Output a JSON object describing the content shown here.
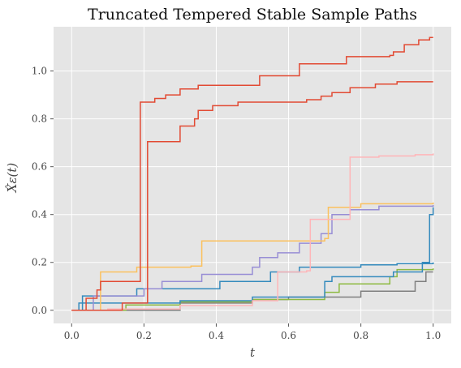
{
  "chart_data": {
    "type": "line",
    "step": true,
    "title": "Truncated Tempered Stable Sample Paths",
    "xlabel": "t",
    "ylabel": "X̂ε(t)",
    "xlim": [
      -0.05,
      1.05
    ],
    "ylim": [
      -0.055,
      1.185
    ],
    "xticks": [
      0.0,
      0.2,
      0.4,
      0.6,
      0.8,
      1.0
    ],
    "xtick_labels": [
      "0.0",
      "0.2",
      "0.4",
      "0.6",
      "0.8",
      "1.0"
    ],
    "yticks": [
      0.0,
      0.2,
      0.4,
      0.6,
      0.8,
      1.0
    ],
    "ytick_labels": [
      "0.0",
      "0.2",
      "0.4",
      "0.6",
      "0.8",
      "1.0"
    ],
    "grid": true,
    "background": "#e5e5e5",
    "series": [
      {
        "color": "#7f7f7f",
        "points": [
          [
            0,
            0
          ],
          [
            0.3,
            0.01
          ],
          [
            0.3,
            0.03
          ],
          [
            0.5,
            0.045
          ],
          [
            0.6,
            0.055
          ],
          [
            0.8,
            0.068
          ],
          [
            0.8,
            0.08
          ],
          [
            0.95,
            0.09
          ],
          [
            0.95,
            0.12
          ],
          [
            0.98,
            0.12
          ],
          [
            0.98,
            0.16
          ],
          [
            1.0,
            0.16
          ]
        ]
      },
      {
        "color": "#8eba42",
        "points": [
          [
            0,
            0
          ],
          [
            0.15,
            0.012
          ],
          [
            0.15,
            0.022
          ],
          [
            0.3,
            0.035
          ],
          [
            0.5,
            0.045
          ],
          [
            0.7,
            0.06
          ],
          [
            0.7,
            0.075
          ],
          [
            0.74,
            0.08
          ],
          [
            0.74,
            0.11
          ],
          [
            0.88,
            0.115
          ],
          [
            0.88,
            0.14
          ],
          [
            0.9,
            0.15
          ],
          [
            0.9,
            0.17
          ],
          [
            1.0,
            0.175
          ]
        ]
      },
      {
        "color": "#348abd",
        "points": [
          [
            0,
            0
          ],
          [
            0.02,
            0.01
          ],
          [
            0.02,
            0.03
          ],
          [
            0.3,
            0.04
          ],
          [
            0.5,
            0.055
          ],
          [
            0.7,
            0.07
          ],
          [
            0.7,
            0.12
          ],
          [
            0.72,
            0.13
          ],
          [
            0.72,
            0.14
          ],
          [
            0.89,
            0.145
          ],
          [
            0.89,
            0.16
          ],
          [
            0.97,
            0.17
          ],
          [
            0.97,
            0.2
          ],
          [
            0.99,
            0.21
          ],
          [
            0.99,
            0.4
          ],
          [
            1.0,
            0.4
          ],
          [
            1.0,
            0.43
          ]
        ]
      },
      {
        "color": "#348abd",
        "points": [
          [
            0,
            0
          ],
          [
            0.03,
            0.02
          ],
          [
            0.03,
            0.06
          ],
          [
            0.18,
            0.07
          ],
          [
            0.18,
            0.09
          ],
          [
            0.41,
            0.1
          ],
          [
            0.41,
            0.12
          ],
          [
            0.55,
            0.13
          ],
          [
            0.55,
            0.16
          ],
          [
            0.63,
            0.17
          ],
          [
            0.63,
            0.18
          ],
          [
            0.8,
            0.19
          ],
          [
            0.9,
            0.19
          ],
          [
            0.9,
            0.195
          ],
          [
            1.0,
            0.2
          ]
        ]
      },
      {
        "color": "#988ed5",
        "points": [
          [
            0,
            0
          ],
          [
            0.06,
            0.03
          ],
          [
            0.06,
            0.06
          ],
          [
            0.2,
            0.075
          ],
          [
            0.2,
            0.09
          ],
          [
            0.25,
            0.1
          ],
          [
            0.25,
            0.12
          ],
          [
            0.36,
            0.13
          ],
          [
            0.36,
            0.15
          ],
          [
            0.5,
            0.16
          ],
          [
            0.5,
            0.18
          ],
          [
            0.52,
            0.19
          ],
          [
            0.52,
            0.22
          ],
          [
            0.57,
            0.23
          ],
          [
            0.57,
            0.24
          ],
          [
            0.63,
            0.25
          ],
          [
            0.63,
            0.28
          ],
          [
            0.69,
            0.29
          ],
          [
            0.69,
            0.32
          ],
          [
            0.72,
            0.33
          ],
          [
            0.72,
            0.4
          ],
          [
            0.77,
            0.41
          ],
          [
            0.77,
            0.42
          ],
          [
            0.85,
            0.43
          ],
          [
            0.85,
            0.435
          ],
          [
            1.0,
            0.44
          ]
        ]
      },
      {
        "color": "#fbc15e",
        "points": [
          [
            0,
            0
          ],
          [
            0.08,
            0.07
          ],
          [
            0.08,
            0.16
          ],
          [
            0.18,
            0.17
          ],
          [
            0.18,
            0.18
          ],
          [
            0.33,
            0.185
          ],
          [
            0.36,
            0.185
          ],
          [
            0.36,
            0.29
          ],
          [
            0.5,
            0.29
          ],
          [
            0.7,
            0.3
          ],
          [
            0.71,
            0.3
          ],
          [
            0.71,
            0.43
          ],
          [
            0.8,
            0.44
          ],
          [
            0.8,
            0.445
          ],
          [
            1.0,
            0.45
          ]
        ]
      },
      {
        "color": "#ffb5b8",
        "points": [
          [
            0,
            0
          ],
          [
            0.1,
            0.005
          ],
          [
            0.3,
            0.02
          ],
          [
            0.5,
            0.04
          ],
          [
            0.57,
            0.05
          ],
          [
            0.57,
            0.16
          ],
          [
            0.65,
            0.165
          ],
          [
            0.66,
            0.17
          ],
          [
            0.66,
            0.38
          ],
          [
            0.77,
            0.4
          ],
          [
            0.77,
            0.64
          ],
          [
            0.85,
            0.645
          ],
          [
            0.95,
            0.65
          ],
          [
            1.0,
            0.655
          ]
        ]
      },
      {
        "color": "#e24a33",
        "points": [
          [
            0,
            0
          ],
          [
            0.04,
            0.01
          ],
          [
            0.04,
            0.05
          ],
          [
            0.07,
            0.05
          ],
          [
            0.07,
            0.085
          ],
          [
            0.08,
            0.085
          ],
          [
            0.08,
            0.12
          ],
          [
            0.19,
            0.13
          ],
          [
            0.19,
            0.87
          ],
          [
            0.23,
            0.875
          ],
          [
            0.23,
            0.885
          ],
          [
            0.26,
            0.89
          ],
          [
            0.26,
            0.9
          ],
          [
            0.3,
            0.905
          ],
          [
            0.3,
            0.925
          ],
          [
            0.35,
            0.93
          ],
          [
            0.35,
            0.94
          ],
          [
            0.52,
            0.95
          ],
          [
            0.52,
            0.98
          ],
          [
            0.63,
            0.99
          ],
          [
            0.63,
            1.03
          ],
          [
            0.76,
            1.04
          ],
          [
            0.76,
            1.06
          ],
          [
            0.88,
            1.065
          ],
          [
            0.89,
            1.07
          ],
          [
            0.89,
            1.08
          ],
          [
            0.92,
            1.085
          ],
          [
            0.92,
            1.11
          ],
          [
            0.96,
            1.12
          ],
          [
            0.96,
            1.13
          ],
          [
            0.99,
            1.135
          ],
          [
            0.99,
            1.14
          ],
          [
            1.0,
            1.14
          ]
        ]
      },
      {
        "color": "#e24a33",
        "points": [
          [
            0,
            0
          ],
          [
            0.14,
            0.01
          ],
          [
            0.14,
            0.03
          ],
          [
            0.21,
            0.04
          ],
          [
            0.21,
            0.705
          ],
          [
            0.3,
            0.71
          ],
          [
            0.3,
            0.77
          ],
          [
            0.34,
            0.775
          ],
          [
            0.34,
            0.8
          ],
          [
            0.35,
            0.8
          ],
          [
            0.35,
            0.835
          ],
          [
            0.39,
            0.84
          ],
          [
            0.39,
            0.855
          ],
          [
            0.46,
            0.86
          ],
          [
            0.46,
            0.87
          ],
          [
            0.65,
            0.875
          ],
          [
            0.65,
            0.88
          ],
          [
            0.69,
            0.885
          ],
          [
            0.69,
            0.895
          ],
          [
            0.72,
            0.9
          ],
          [
            0.72,
            0.91
          ],
          [
            0.77,
            0.915
          ],
          [
            0.77,
            0.93
          ],
          [
            0.84,
            0.935
          ],
          [
            0.84,
            0.945
          ],
          [
            0.9,
            0.95
          ],
          [
            0.9,
            0.955
          ],
          [
            1.0,
            0.955
          ]
        ]
      }
    ]
  }
}
